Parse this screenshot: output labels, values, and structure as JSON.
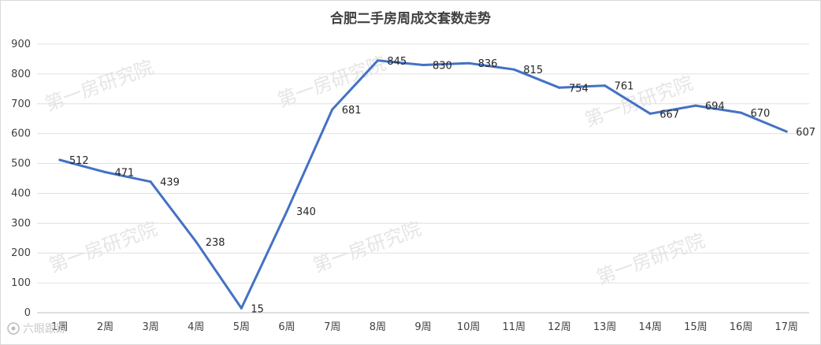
{
  "chart_data": {
    "type": "line",
    "title": "合肥二手房周成交套数走势",
    "xlabel": "",
    "ylabel": "",
    "categories": [
      "1周",
      "2周",
      "3周",
      "4周",
      "5周",
      "6周",
      "7周",
      "8周",
      "9周",
      "10周",
      "11周",
      "12周",
      "13周",
      "14周",
      "15周",
      "16周",
      "17周"
    ],
    "series": [
      {
        "values": [
          512,
          471,
          439,
          238,
          15,
          340,
          681,
          845,
          830,
          836,
          815,
          754,
          761,
          667,
          694,
          670,
          607
        ]
      }
    ],
    "ylim": [
      0,
      900
    ],
    "yticks": [
      "0",
      "100",
      "200",
      "300",
      "400",
      "500",
      "600",
      "700",
      "800",
      "900"
    ],
    "grid": true,
    "legend": "none",
    "colors": {
      "line": "#4472c4",
      "grid": "#e0e0e0",
      "text": "#404040"
    }
  },
  "watermarks": [
    "第一房研究院",
    "第一房研究院",
    "第一房研究院",
    "第一房研究院",
    "第一房研究院",
    "第一房研究院"
  ],
  "brand": "六眼跟踪"
}
